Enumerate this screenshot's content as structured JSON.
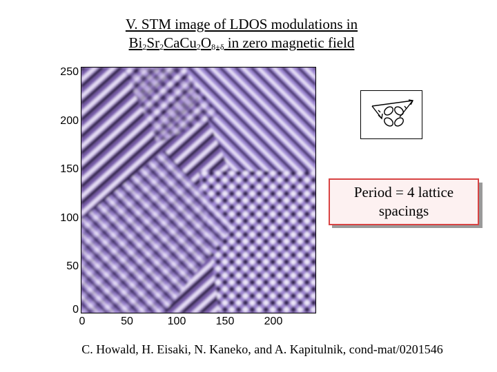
{
  "slide": {
    "title_line1": "V. STM image of LDOS modulations in",
    "formula": {
      "bi": "Bi",
      "bi_sub": "2",
      "sr": "Sr",
      "sr_sub": "2",
      "ca": "CaCu",
      "cu_sub": "2",
      "o": "O",
      "o_sub": "8+δ"
    },
    "title_line2_tail": " in zero magnetic field",
    "callout": "Period = 4 lattice spacings",
    "citation": "C. Howald, H. Eisaki, N. Kaneko, and A. Kapitulnik, cond-mat/0201546"
  },
  "chart_data": {
    "type": "heatmap",
    "title": "STM image of LDOS modulations",
    "x_ticks": [
      0,
      50,
      100,
      150,
      200
    ],
    "y_ticks": [
      250,
      200,
      150,
      100,
      50,
      0
    ],
    "xlim": [
      0,
      240
    ],
    "ylim": [
      0,
      255
    ],
    "colormap": [
      "#1a0f2e",
      "#6a4fa0",
      "#a08ad6",
      "#e8e0f6"
    ],
    "modulation_period_lattice_spacings": 4
  }
}
